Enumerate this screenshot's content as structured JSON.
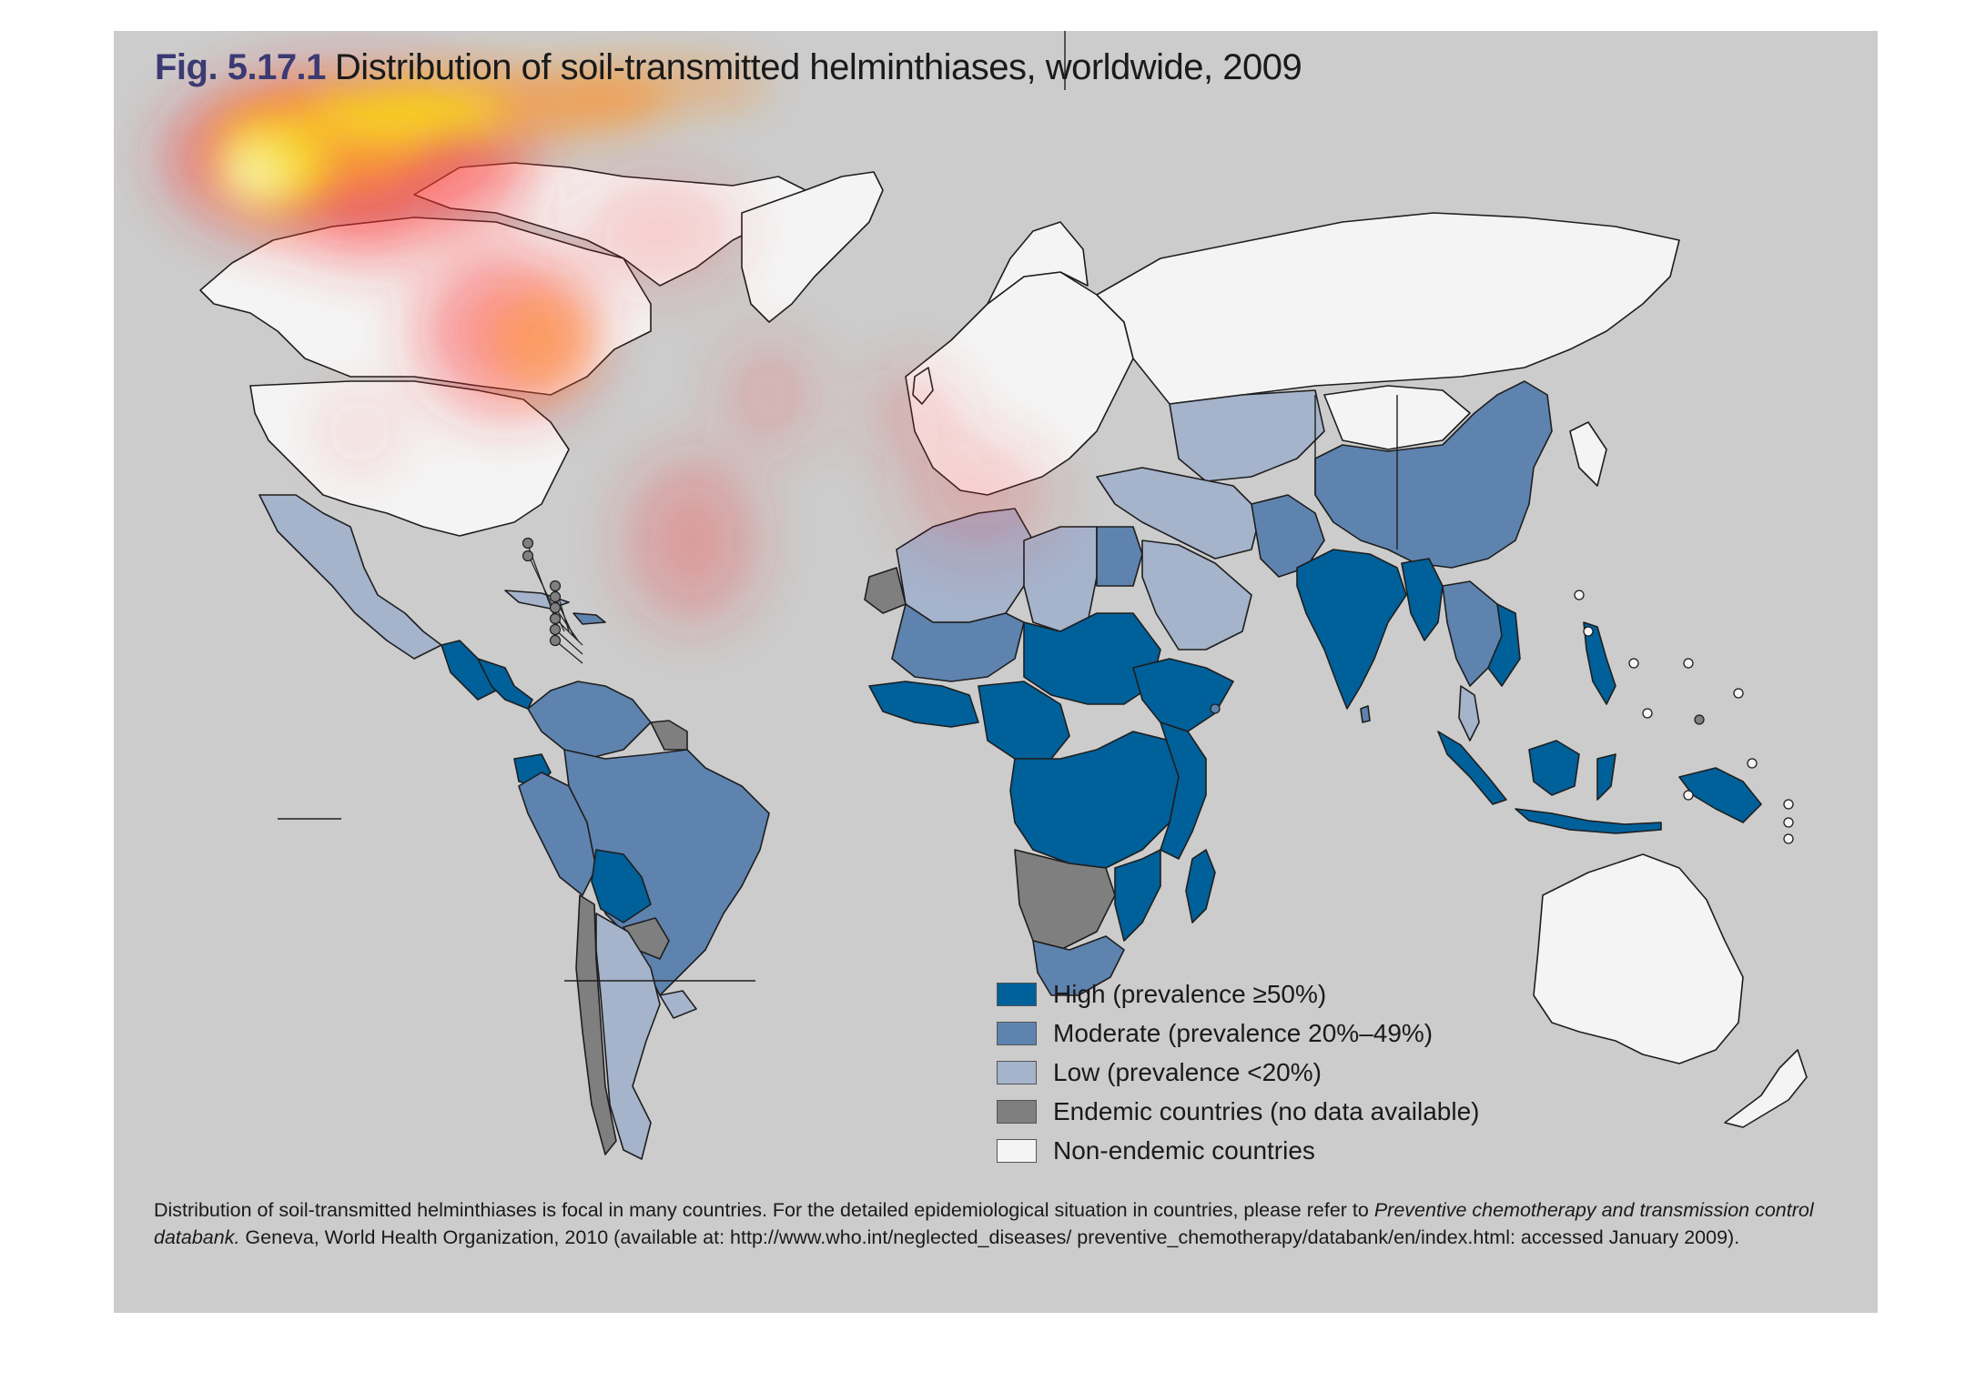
{
  "figure": {
    "number": "Fig. 5.17.1",
    "title": "Distribution of soil-transmitted helminthiases, worldwide, 2009"
  },
  "colors": {
    "high": "#00609a",
    "moderate": "#5e83ae",
    "low": "#a5b3cb",
    "endemic_no_data": "#7f7f7f",
    "non_endemic": "#f4f4f4",
    "background": "#cccccc",
    "border": "#1e1e1e"
  },
  "legend": [
    {
      "key": "high",
      "label": "High (prevalence ≥50%)"
    },
    {
      "key": "moderate",
      "label": "Moderate (prevalence 20%–49%)"
    },
    {
      "key": "low",
      "label": "Low (prevalence <20%)"
    },
    {
      "key": "endemic_no_data",
      "label": "Endemic countries (no data available)"
    },
    {
      "key": "non_endemic",
      "label": "Non-endemic countries"
    }
  ],
  "caption": {
    "text_before": "Distribution of soil-transmitted helminthiases is focal in many countries. For the detailed epidemiological situation in countries, please refer to ",
    "italic": "Preventive chemotherapy and transmission control databank.",
    "text_after": " Geneva, World Health Organization, 2010 (available at: http://www.who.int/neglected_diseases/ preventive_chemotherapy/databank/en/index.html: accessed January 2009)."
  },
  "overlay": {
    "type": "attention-heatmap",
    "colors": [
      "#ff2a2a",
      "#ff8c1a",
      "#ffe600",
      "#ffffb0"
    ]
  }
}
